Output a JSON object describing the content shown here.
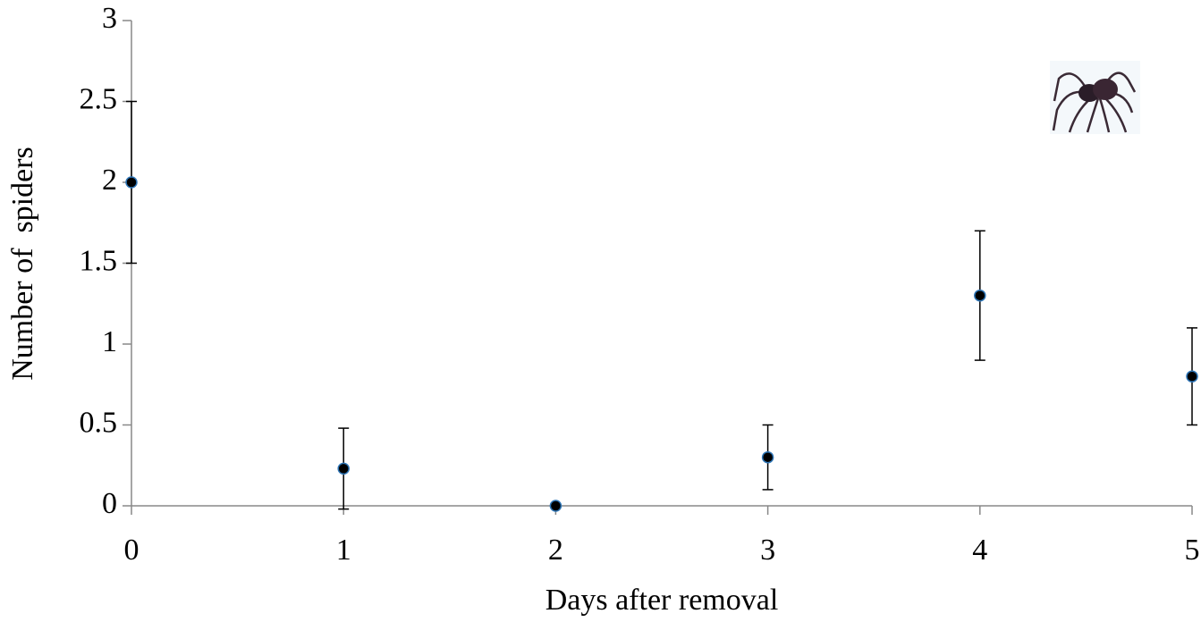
{
  "chart_data": {
    "type": "scatter",
    "x_label": "Days after removal",
    "y_label": "Number of  spiders",
    "x": [
      0,
      1,
      2,
      3,
      4,
      5
    ],
    "series": [
      {
        "values": [
          2,
          0.23,
          0,
          0.3,
          1.3,
          0.8
        ],
        "errors": [
          0.5,
          0.25,
          0,
          0.2,
          0.4,
          0.3
        ],
        "color": "#000000",
        "edge_color": "#2e75b6"
      }
    ],
    "xlim": [
      0,
      5
    ],
    "ylim": [
      0,
      3
    ],
    "xticks": [
      0,
      1,
      2,
      3,
      4,
      5
    ],
    "yticks": [
      0,
      0.5,
      1,
      1.5,
      2,
      2.5,
      3
    ],
    "grid": false
  }
}
